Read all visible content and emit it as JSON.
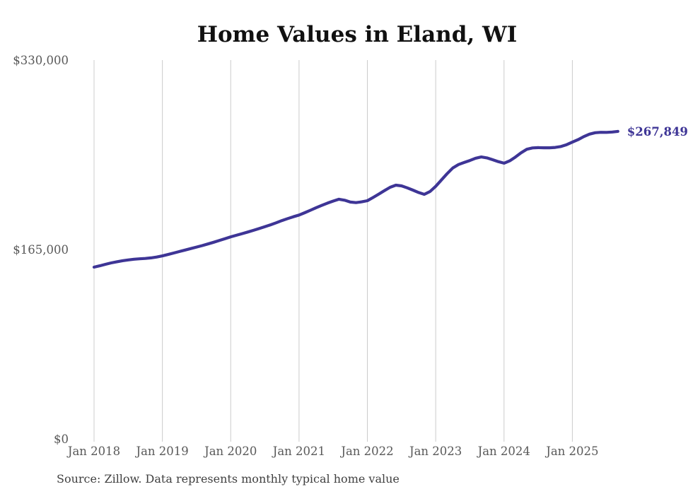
{
  "chart": {
    "title": "Home Values in Eland, WI",
    "end_label": "$267,849",
    "source": "Source: Zillow. Data represents monthly typical home value"
  },
  "chart_data": {
    "type": "line",
    "title": "Home Values in Eland, WI",
    "series_name": "Monthly typical home value",
    "source": "Source: Zillow. Data represents monthly typical home value",
    "frequency": "monthly",
    "start_month": "Jan 2018",
    "end_month": "Sep 2025",
    "latest_value": 267849,
    "latest_value_label": "$267,849",
    "ylim": [
      0,
      330000
    ],
    "grid": "vertical-only",
    "legend": "none",
    "line_color": "#3e3596",
    "gridline_color": "#cccccc",
    "tick_color": "#595959",
    "y_ticks": [
      {
        "label": "$0",
        "value": 0
      },
      {
        "label": "$165,000",
        "value": 165000
      },
      {
        "label": "$330,000",
        "value": 330000
      }
    ],
    "x_ticks": [
      "Jan 2018",
      "Jan 2019",
      "Jan 2020",
      "Jan 2021",
      "Jan 2022",
      "Jan 2023",
      "Jan 2024",
      "Jan 2025"
    ],
    "values": [
      149600,
      150800,
      152100,
      153300,
      154300,
      155200,
      155900,
      156500,
      156900,
      157200,
      157700,
      158400,
      159400,
      160600,
      161900,
      163200,
      164500,
      165800,
      167100,
      168400,
      169800,
      171300,
      172800,
      174400,
      176000,
      177400,
      178800,
      180200,
      181700,
      183200,
      184800,
      186500,
      188300,
      190200,
      191900,
      193500,
      195000,
      197000,
      199200,
      201400,
      203400,
      205400,
      207200,
      208800,
      207900,
      206300,
      205800,
      206500,
      207500,
      210300,
      213200,
      216300,
      219200,
      221000,
      220400,
      218700,
      216700,
      214600,
      213000,
      215500,
      220000,
      225500,
      231000,
      236000,
      239000,
      240800,
      242500,
      244500,
      245600,
      244800,
      243200,
      241500,
      240200,
      242200,
      245500,
      249200,
      252300,
      253500,
      253700,
      253600,
      253600,
      253900,
      254700,
      256300,
      258500,
      260700,
      263300,
      265500,
      266700,
      267100,
      267000,
      267300,
      267849
    ]
  }
}
